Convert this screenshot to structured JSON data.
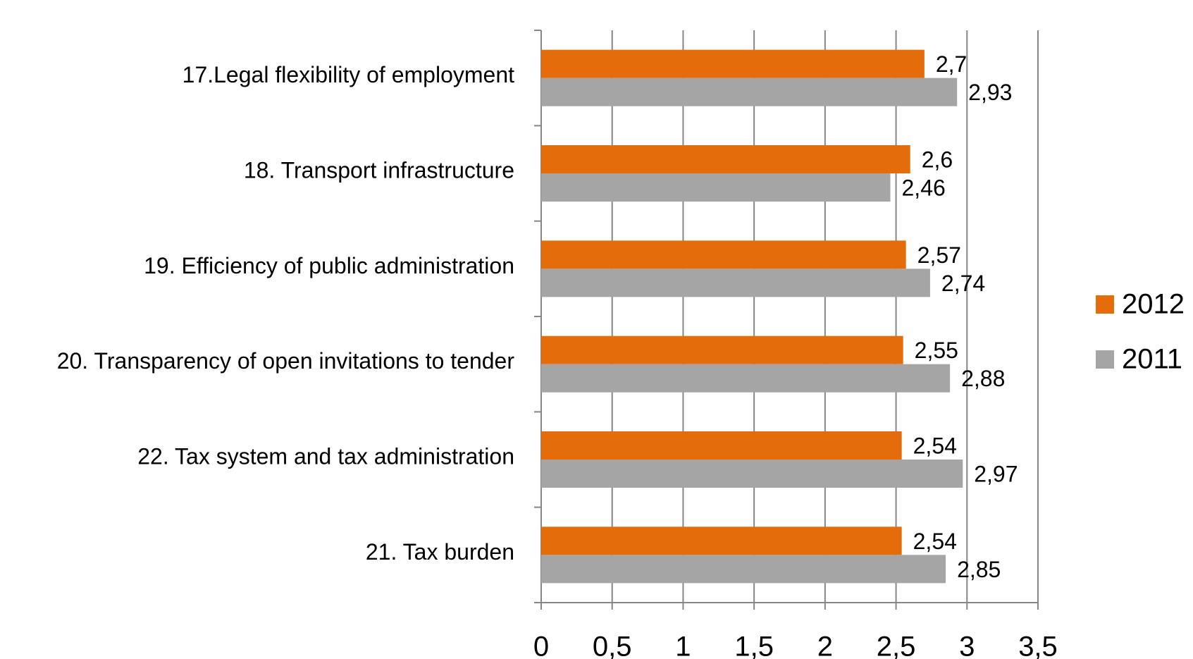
{
  "chart_data": {
    "type": "bar",
    "orientation": "horizontal",
    "categories": [
      "17.Legal flexibility of employment",
      "18. Transport infrastructure",
      "19. Efficiency of public administration",
      "20. Transparency of open invitations to tender",
      "22. Tax system and tax administration",
      "21. Tax burden"
    ],
    "series": [
      {
        "name": "2012",
        "color": "#e46c0a",
        "values": [
          2.7,
          2.6,
          2.57,
          2.55,
          2.54,
          2.54
        ],
        "value_labels": [
          "2,7",
          "2,6",
          "2,57",
          "2,55",
          "2,54",
          "2,54"
        ]
      },
      {
        "name": "2011",
        "color": "#a5a5a5",
        "values": [
          2.93,
          2.46,
          2.74,
          2.88,
          2.97,
          2.85
        ],
        "value_labels": [
          "2,93",
          "2,46",
          "2,74",
          "2,88",
          "2,97",
          "2,85"
        ]
      }
    ],
    "xlim": [
      0,
      3.5
    ],
    "xticks": [
      0,
      {
        "value": 0.5,
        "label": "0,5"
      },
      1,
      {
        "value": 1.5,
        "label": "1,5"
      },
      2,
      {
        "value": 2.5,
        "label": "2,5"
      },
      3,
      {
        "value": 3.5,
        "label": "3,5"
      }
    ],
    "grid": true,
    "legend": "right"
  }
}
